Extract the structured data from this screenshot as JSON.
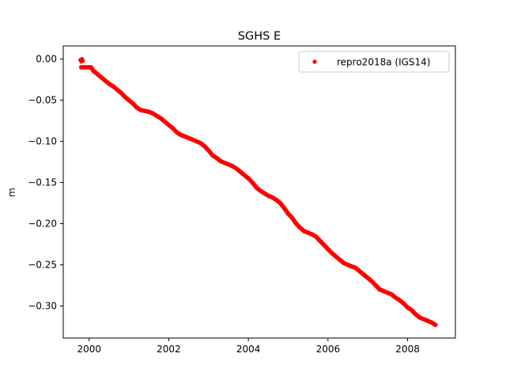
{
  "chart_data": {
    "type": "scatter",
    "title": "SGHS E",
    "xlabel": "",
    "ylabel": "m",
    "xlim": [
      1999.35,
      2009.2
    ],
    "ylim": [
      -0.339,
      0.016
    ],
    "xticks": [
      2000,
      2002,
      2004,
      2006,
      2008
    ],
    "xtick_labels": [
      "2000",
      "2002",
      "2004",
      "2006",
      "2008"
    ],
    "yticks": [
      0.0,
      -0.05,
      -0.1,
      -0.15,
      -0.2,
      -0.25,
      -0.3
    ],
    "ytick_labels": [
      "0.00",
      "−0.05",
      "−0.10",
      "−0.15",
      "−0.20",
      "−0.25",
      "−0.30"
    ],
    "grid": false,
    "legend_position": "top-right",
    "series": [
      {
        "name": "repro2018a (IGS14)",
        "color": "#ff0000",
        "marker": "dot",
        "x": [
          1999.78,
          1999.8,
          1999.82,
          1999.84,
          1999.8,
          2000.05,
          2000.1,
          2000.2,
          2000.3,
          2000.4,
          2000.5,
          2000.6,
          2000.7,
          2000.8,
          2000.9,
          2001.0,
          2001.1,
          2001.2,
          2001.3,
          2001.4,
          2001.5,
          2001.6,
          2001.7,
          2001.8,
          2001.9,
          2002.0,
          2002.1,
          2002.2,
          2002.3,
          2002.4,
          2002.5,
          2002.6,
          2002.7,
          2002.8,
          2002.9,
          2003.0,
          2003.1,
          2003.2,
          2003.3,
          2003.4,
          2003.5,
          2003.6,
          2003.7,
          2003.8,
          2003.9,
          2004.0,
          2004.1,
          2004.2,
          2004.3,
          2004.4,
          2004.5,
          2004.6,
          2004.7,
          2004.8,
          2004.9,
          2005.0,
          2005.1,
          2005.2,
          2005.3,
          2005.4,
          2005.5,
          2005.6,
          2005.7,
          2005.8,
          2005.9,
          2006.0,
          2006.1,
          2006.2,
          2006.3,
          2006.4,
          2006.5,
          2006.6,
          2006.7,
          2006.8,
          2006.9,
          2007.0,
          2007.1,
          2007.2,
          2007.3,
          2007.4,
          2007.5,
          2007.6,
          2007.7,
          2007.8,
          2007.9,
          2008.0,
          2008.1,
          2008.2,
          2008.3,
          2008.4,
          2008.5,
          2008.6,
          2008.7
        ],
        "y": [
          -0.001,
          -0.003,
          0.0,
          -0.002,
          -0.01,
          -0.01,
          -0.014,
          -0.018,
          -0.022,
          -0.026,
          -0.03,
          -0.033,
          -0.037,
          -0.041,
          -0.046,
          -0.05,
          -0.054,
          -0.059,
          -0.062,
          -0.063,
          -0.064,
          -0.066,
          -0.069,
          -0.072,
          -0.076,
          -0.08,
          -0.084,
          -0.089,
          -0.092,
          -0.094,
          -0.096,
          -0.098,
          -0.1,
          -0.102,
          -0.106,
          -0.111,
          -0.117,
          -0.12,
          -0.124,
          -0.126,
          -0.128,
          -0.13,
          -0.133,
          -0.137,
          -0.141,
          -0.145,
          -0.15,
          -0.156,
          -0.16,
          -0.163,
          -0.166,
          -0.168,
          -0.171,
          -0.175,
          -0.181,
          -0.188,
          -0.193,
          -0.2,
          -0.205,
          -0.209,
          -0.211,
          -0.213,
          -0.216,
          -0.221,
          -0.226,
          -0.231,
          -0.236,
          -0.24,
          -0.244,
          -0.248,
          -0.25,
          -0.252,
          -0.254,
          -0.258,
          -0.262,
          -0.266,
          -0.27,
          -0.275,
          -0.28,
          -0.282,
          -0.284,
          -0.286,
          -0.29,
          -0.293,
          -0.297,
          -0.302,
          -0.305,
          -0.31,
          -0.314,
          -0.316,
          -0.318,
          -0.32,
          -0.323
        ]
      }
    ]
  }
}
